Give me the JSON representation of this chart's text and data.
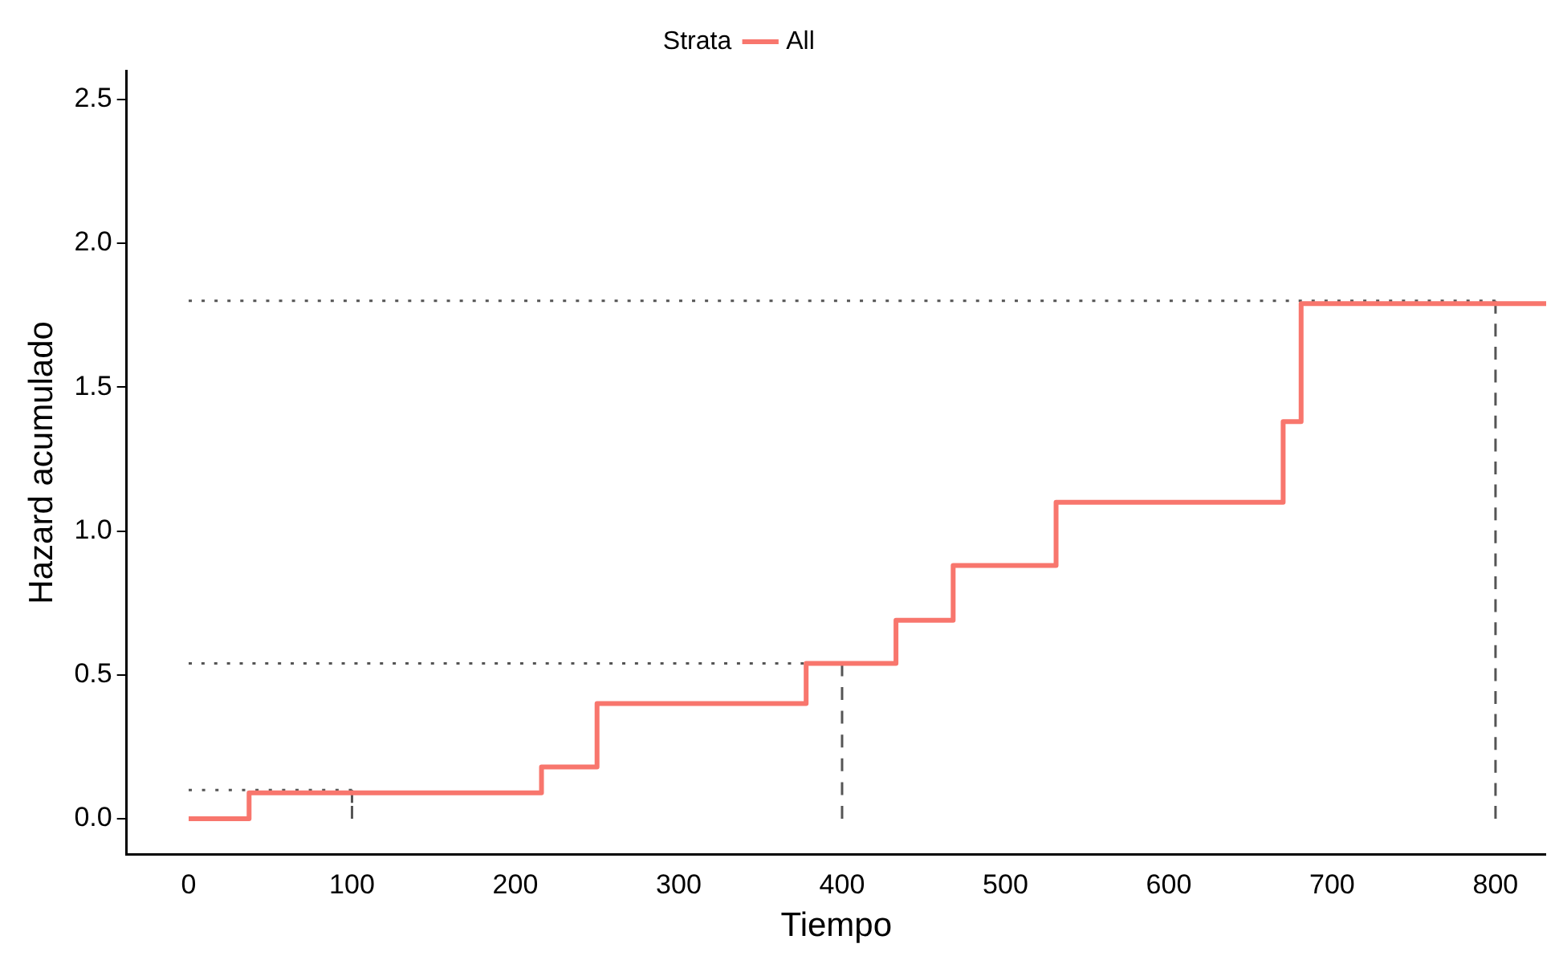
{
  "chart_data": {
    "type": "step",
    "xlabel": "Tiempo",
    "ylabel": "Hazard acumulado",
    "legend_title": "Strata",
    "legend": "top",
    "grid": false,
    "x": [
      0,
      37,
      216,
      250,
      378,
      433,
      468,
      531,
      670,
      681,
      831
    ],
    "series": [
      {
        "name": "All",
        "color": "#f8766d",
        "values": [
          0,
          0.09,
          0.18,
          0.4,
          0.54,
          0.69,
          0.88,
          1.1,
          1.38,
          1.79,
          1.79
        ]
      },
      {
        "type": "line",
        "color": "#555555",
        "line_style": "dotted",
        "x": [
          0,
          100
        ],
        "values": [
          0.1,
          0.1
        ]
      },
      {
        "type": "line",
        "color": "#555555",
        "line_style": "dotted",
        "x": [
          0,
          400
        ],
        "values": [
          0.54,
          0.54
        ]
      },
      {
        "type": "line",
        "color": "#555555",
        "line_style": "dotted",
        "x": [
          0,
          800
        ],
        "values": [
          1.8,
          1.8
        ]
      },
      {
        "type": "line",
        "color": "#555555",
        "line_style": "dashed",
        "x": [
          100,
          100
        ],
        "values": [
          0,
          0.1
        ]
      },
      {
        "type": "line",
        "color": "#555555",
        "line_style": "dashed",
        "x": [
          400,
          400
        ],
        "values": [
          0,
          0.54
        ]
      },
      {
        "type": "line",
        "color": "#555555",
        "line_style": "dashed",
        "x": [
          800,
          800
        ],
        "values": [
          0,
          1.8
        ]
      }
    ],
    "xlim": [
      -38,
      831
    ],
    "ylim": [
      -0.125,
      2.6
    ],
    "xticks": [
      0,
      100,
      200,
      300,
      400,
      500,
      600,
      700,
      800
    ],
    "yticks": [
      {
        "value": 0,
        "label": "0.0"
      },
      {
        "value": 0.5,
        "label": "0.5"
      },
      {
        "value": 1,
        "label": "1.0"
      },
      {
        "value": 1.5,
        "label": "1.5"
      },
      {
        "value": 2,
        "label": "2.0"
      },
      {
        "value": 2.5,
        "label": "2.5"
      }
    ]
  }
}
